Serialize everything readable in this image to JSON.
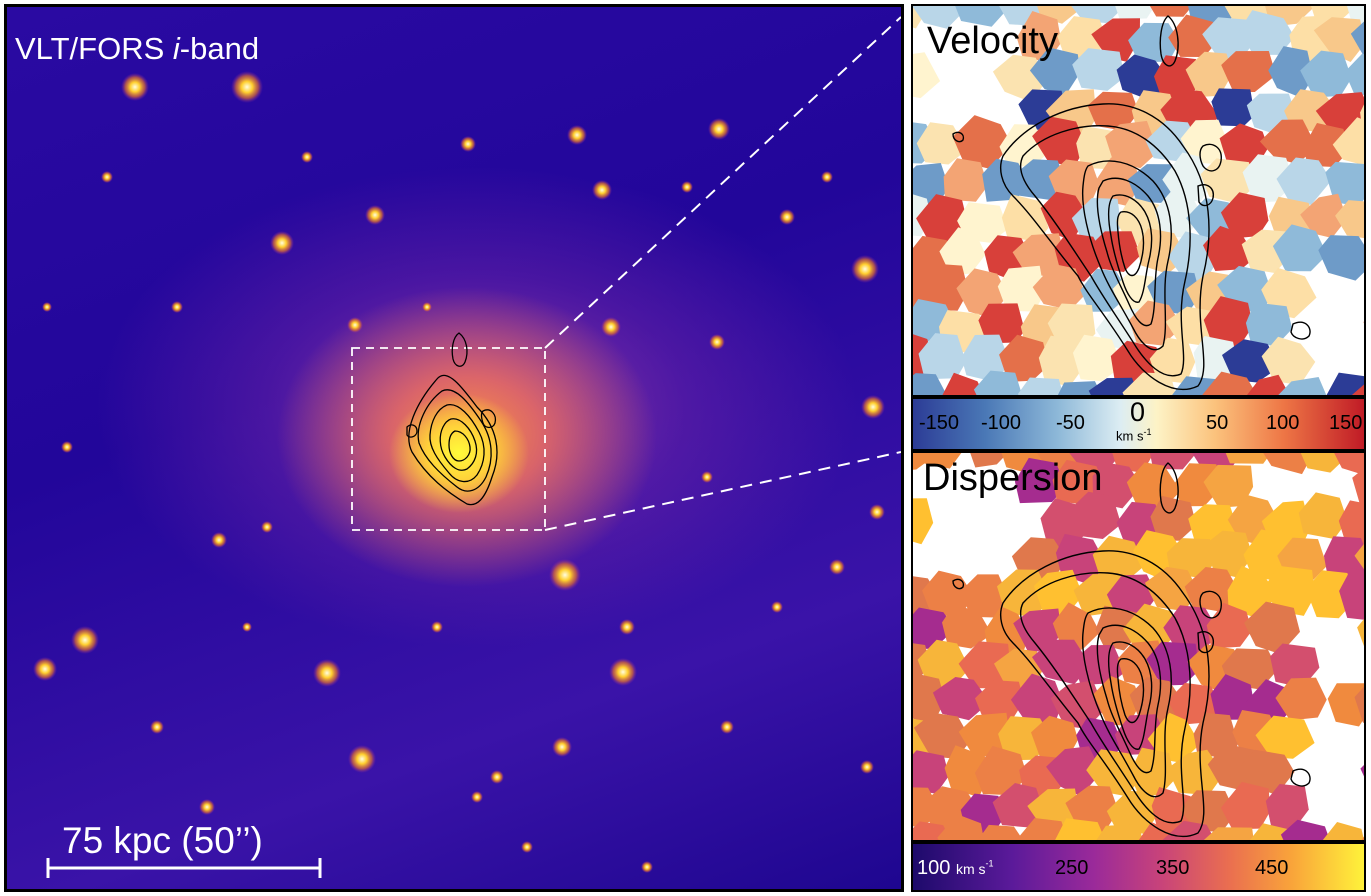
{
  "main": {
    "title_prefix": "VLT/FORS ",
    "title_band": "i",
    "title_suffix": "-band",
    "scale_label": "75 kpc (50’’)"
  },
  "velocity": {
    "title": "Velocity",
    "colorbar": {
      "ticks": [
        "-150",
        "-100",
        "-50",
        "0",
        "50",
        "100",
        "150"
      ],
      "unit": "km s",
      "unit_exp": "-1",
      "colors": [
        "#2c3c96",
        "#8db8d8",
        "#fdf3c6",
        "#ee7746",
        "#c01b26"
      ]
    }
  },
  "dispersion": {
    "title": "Dispersion",
    "colorbar": {
      "first_tick": "100",
      "unit": "km s",
      "unit_exp": "-1",
      "ticks": [
        "250",
        "350",
        "450"
      ],
      "colors": [
        "#1d0a6b",
        "#9a2a9a",
        "#ea6e50",
        "#fff23a"
      ]
    }
  },
  "colors": {
    "background_sky": "#22069a",
    "halo": "#ffd23a",
    "contour": "#000000",
    "zoom_lines": "#ffffff"
  }
}
